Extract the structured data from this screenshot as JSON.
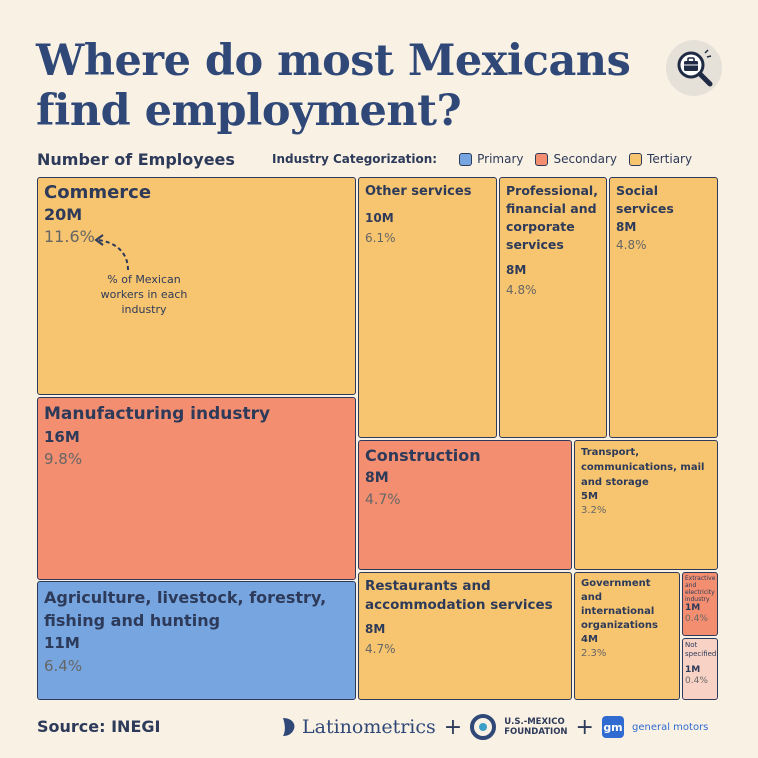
{
  "title": "Where do most Mexicans find employment?",
  "subtitle": "Number of Employees",
  "legend": {
    "title": "Industry Categorization:",
    "items": [
      {
        "label": "Primary",
        "color": "#76a5e0"
      },
      {
        "label": "Secondary",
        "color": "#f38f70"
      },
      {
        "label": "Tertiary",
        "color": "#f7c56f"
      }
    ]
  },
  "annotation": "% of Mexican workers in each industry",
  "footer": {
    "source": "Source: INEGI",
    "logo1": "Latinometrics",
    "plus": "+",
    "logo2_line1": "U.S.-MEXICO",
    "logo2_line2": "FOUNDATION",
    "logo3_mark": "gm",
    "logo3": "general motors"
  },
  "chart_data": {
    "type": "treemap",
    "title": "Where do most Mexicans find employment?",
    "subtitle": "Number of Employees",
    "tiles": [
      {
        "name": "Commerce",
        "value": "20M",
        "pct": "11.6%",
        "category": "Tertiary"
      },
      {
        "name": "Manufacturing industry",
        "value": "16M",
        "pct": "9.8%",
        "category": "Secondary"
      },
      {
        "name": "Agriculture, livestock, forestry, fishing and hunting",
        "value": "11M",
        "pct": "6.4%",
        "category": "Primary"
      },
      {
        "name": "Other services",
        "value": "10M",
        "pct": "6.1%",
        "category": "Tertiary"
      },
      {
        "name": "Professional, financial and corporate services",
        "value": "8M",
        "pct": "4.8%",
        "category": "Tertiary"
      },
      {
        "name": "Social services",
        "value": "8M",
        "pct": "4.8%",
        "category": "Tertiary"
      },
      {
        "name": "Construction",
        "value": "8M",
        "pct": "4.7%",
        "category": "Secondary"
      },
      {
        "name": "Transport, communications, mail and storage",
        "value": "5M",
        "pct": "3.2%",
        "category": "Tertiary"
      },
      {
        "name": "Restaurants and accommodation services",
        "value": "8M",
        "pct": "4.7%",
        "category": "Tertiary"
      },
      {
        "name": "Government and international organizations",
        "value": "4M",
        "pct": "2.3%",
        "category": "Tertiary"
      },
      {
        "name": "Extractive and electricity industry",
        "value": "1M",
        "pct": "0.4%",
        "category": "Secondary"
      },
      {
        "name": "Not specified",
        "value": "1M",
        "pct": "0.4%",
        "category": ""
      }
    ]
  }
}
